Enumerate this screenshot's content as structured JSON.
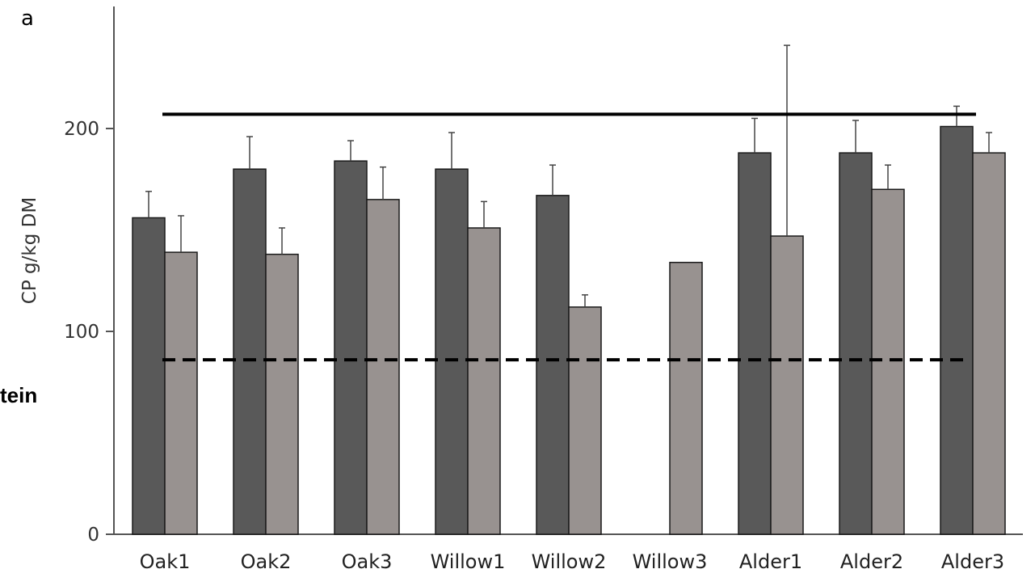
{
  "panel_label": "a",
  "cut_text": "tein",
  "colors": {
    "series1": "#595959",
    "series2": "#989290",
    "axis": "#555555",
    "reference": "#000000"
  },
  "chart_data": {
    "type": "bar",
    "ylabel": "CP g/kg DM",
    "ylim": [
      0,
      250
    ],
    "yticks": [
      0,
      100,
      200
    ],
    "grid": false,
    "categories": [
      "Oak1",
      "Oak2",
      "Oak3",
      "Willow1",
      "Willow2",
      "Willow3",
      "Alder1",
      "Alder2",
      "Alder3"
    ],
    "series": [
      {
        "values": [
          156,
          180,
          184,
          180,
          167,
          null,
          188,
          188,
          201
        ],
        "errors": [
          13,
          16,
          10,
          18,
          15,
          null,
          17,
          16,
          10
        ]
      },
      {
        "values": [
          139,
          138,
          165,
          151,
          112,
          134,
          147,
          170,
          188
        ],
        "errors": [
          18,
          13,
          16,
          13,
          6,
          0,
          94,
          12,
          10
        ]
      }
    ],
    "reference_lines": [
      {
        "y": 207,
        "style": "solid"
      },
      {
        "y": 86,
        "style": "dashed"
      }
    ]
  }
}
